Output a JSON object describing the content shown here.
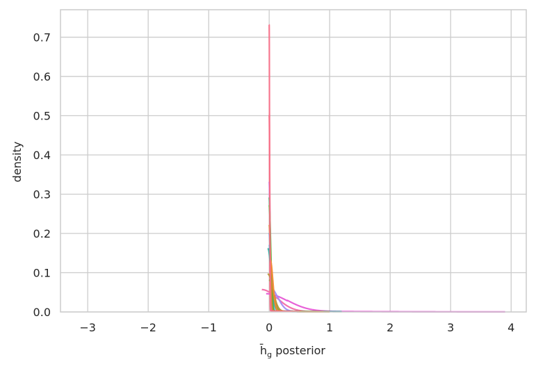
{
  "chart_data": {
    "type": "line",
    "title": "",
    "xlabel_main": "h̄",
    "xlabel_sub": "g",
    "xlabel_rest": " posterior",
    "ylabel": "density",
    "xlim": [
      -3.45,
      4.25
    ],
    "ylim": [
      0.0,
      0.77
    ],
    "grid": true,
    "legend": "none",
    "x_ticks": [
      -3,
      -2,
      -1,
      0,
      1,
      2,
      3,
      4
    ],
    "x_tick_labels": [
      "−3",
      "−2",
      "−1",
      "0",
      "1",
      "2",
      "3",
      "4"
    ],
    "y_ticks": [
      0.0,
      0.1,
      0.2,
      0.3,
      0.4,
      0.5,
      0.6,
      0.7
    ],
    "y_tick_labels": [
      "0.0",
      "0.1",
      "0.2",
      "0.3",
      "0.4",
      "0.5",
      "0.6",
      "0.7"
    ],
    "colors": {
      "background": "#ffffff",
      "grid": "#cccccc",
      "spine": "#cccccc",
      "text": "#262626"
    },
    "series": [
      {
        "color": "#f77189",
        "mu": 0.0,
        "sigma": 0.006,
        "peak": 0.73,
        "tails": [
          -0.6,
          0.6,
          0.003
        ]
      },
      {
        "color": "#f26ba8",
        "mu": -0.12,
        "sigma": 0.25,
        "peak": 0.055,
        "tails": [
          -1.2,
          0.9,
          0.004
        ]
      },
      {
        "color": "#e658d5",
        "mu": -0.05,
        "sigma": 0.35,
        "peak": 0.045,
        "tails": [
          -1.5,
          3.9,
          0.003
        ]
      },
      {
        "color": "#c476f0",
        "mu": 0.0,
        "sigma": 0.015,
        "peak": 0.33,
        "tails": [
          -0.7,
          0.8,
          0.003
        ]
      },
      {
        "color": "#a48cf4",
        "mu": 0.02,
        "sigma": 0.12,
        "peak": 0.06,
        "tails": [
          -0.8,
          1.0,
          0.003
        ]
      },
      {
        "color": "#6e9bf4",
        "mu": 0.0,
        "sigma": 0.02,
        "peak": 0.2,
        "tails": [
          -3.1,
          0.9,
          0.002
        ]
      },
      {
        "color": "#3ba3ec",
        "mu": 0.0,
        "sigma": 0.03,
        "peak": 0.17,
        "tails": [
          -1.0,
          1.0,
          0.002
        ]
      },
      {
        "color": "#36ada4",
        "mu": -0.02,
        "sigma": 0.05,
        "peak": 0.16,
        "tails": [
          -2.5,
          1.2,
          0.003
        ]
      },
      {
        "color": "#38a871",
        "mu": 0.0,
        "sigma": 0.018,
        "peak": 0.29,
        "tails": [
          -0.9,
          0.9,
          0.003
        ]
      },
      {
        "color": "#50b131",
        "mu": 0.0,
        "sigma": 0.025,
        "peak": 0.27,
        "tails": [
          -0.8,
          0.8,
          0.003
        ]
      },
      {
        "color": "#8ba131",
        "mu": 0.0,
        "sigma": 0.06,
        "peak": 0.08,
        "tails": [
          -0.7,
          0.7,
          0.003
        ]
      },
      {
        "color": "#b29331",
        "mu": -0.02,
        "sigma": 0.08,
        "peak": 0.095,
        "tails": [
          -0.7,
          0.7,
          0.003
        ]
      },
      {
        "color": "#ce8f31",
        "mu": 0.0,
        "sigma": 0.02,
        "peak": 0.22,
        "tails": [
          -0.6,
          1.0,
          0.003
        ]
      },
      {
        "color": "#f38932",
        "mu": 0.02,
        "sigma": 0.04,
        "peak": 0.13,
        "tails": [
          -0.6,
          0.9,
          0.003
        ]
      },
      {
        "color": "#f77189",
        "mu": 0.0,
        "sigma": 0.01,
        "peak": 0.5,
        "tails": [
          -0.5,
          0.5,
          0.003
        ]
      }
    ]
  }
}
